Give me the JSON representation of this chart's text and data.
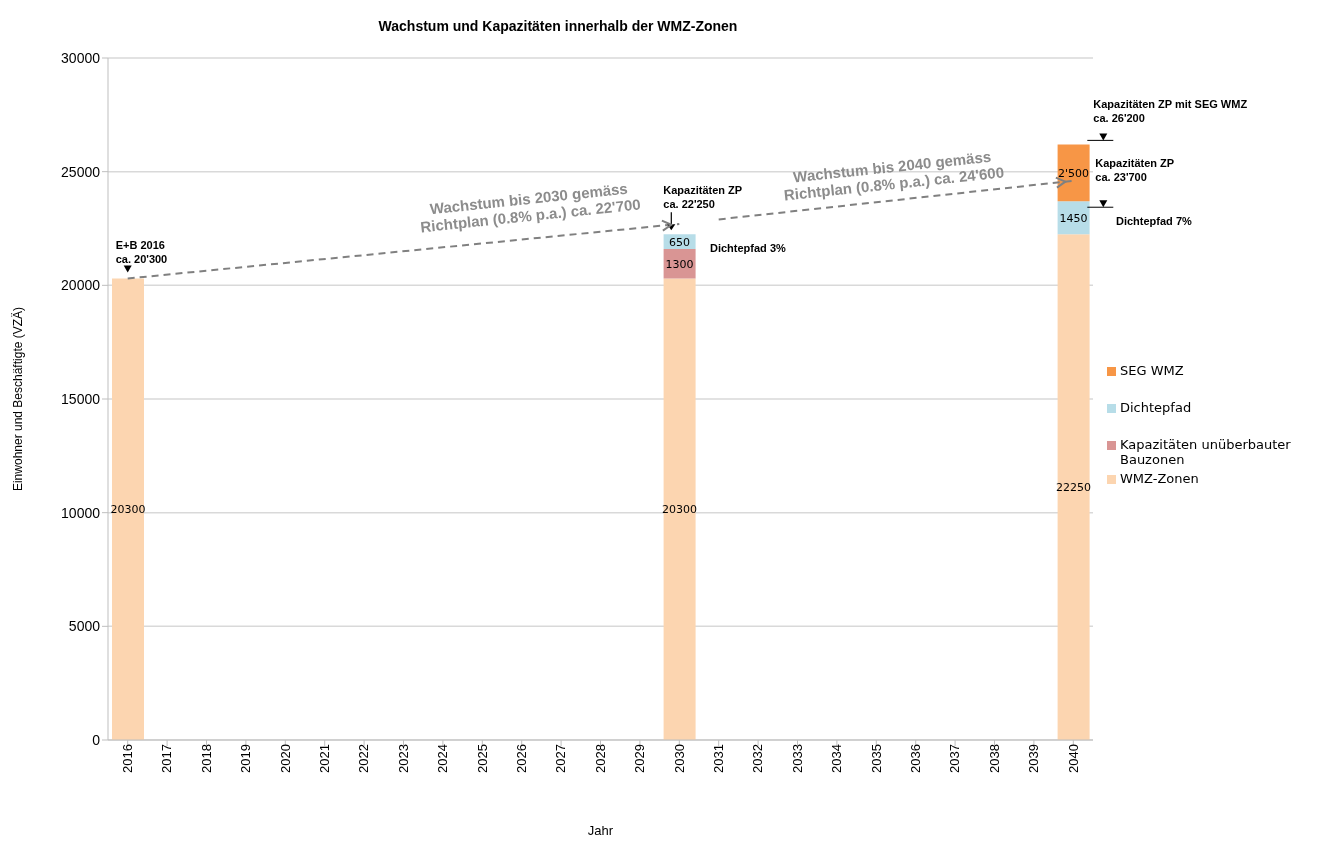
{
  "chart_data": {
    "type": "bar",
    "title": "Wachstum und Kapazitäten innerhalb der WMZ-Zonen",
    "xlabel": "Jahr",
    "ylabel": "Einwohner und Beschäftigte (VZÄ)",
    "categories": [
      "2016",
      "2017",
      "2018",
      "2019",
      "2020",
      "2021",
      "2022",
      "2023",
      "2024",
      "2025",
      "2026",
      "2027",
      "2028",
      "2029",
      "2030",
      "2031",
      "2032",
      "2033",
      "2034",
      "2035",
      "2036",
      "2037",
      "2038",
      "2039",
      "2040"
    ],
    "stacked": true,
    "ylim": [
      0,
      30000
    ],
    "yticks": [
      0,
      5000,
      10000,
      15000,
      20000,
      25000,
      30000
    ],
    "grid": "y",
    "legend": "right",
    "series": [
      {
        "name": "WMZ-Zonen",
        "color": "#fcd5b0",
        "values": [
          20300,
          null,
          null,
          null,
          null,
          null,
          null,
          null,
          null,
          null,
          null,
          null,
          null,
          null,
          20300,
          null,
          null,
          null,
          null,
          null,
          null,
          null,
          null,
          null,
          22250
        ],
        "value_labels": [
          "20300",
          null,
          null,
          null,
          null,
          null,
          null,
          null,
          null,
          null,
          null,
          null,
          null,
          null,
          "20300",
          null,
          null,
          null,
          null,
          null,
          null,
          null,
          null,
          null,
          "22250"
        ]
      },
      {
        "name": "Kapazitäten unüberbauter Bauzonen",
        "color": "#d99594",
        "values": [
          null,
          null,
          null,
          null,
          null,
          null,
          null,
          null,
          null,
          null,
          null,
          null,
          null,
          null,
          1300,
          null,
          null,
          null,
          null,
          null,
          null,
          null,
          null,
          null,
          null
        ],
        "value_labels": [
          null,
          null,
          null,
          null,
          null,
          null,
          null,
          null,
          null,
          null,
          null,
          null,
          null,
          null,
          "1300",
          null,
          null,
          null,
          null,
          null,
          null,
          null,
          null,
          null,
          null
        ]
      },
      {
        "name": "Dichtepfad",
        "color": "#b7dde8",
        "values": [
          null,
          null,
          null,
          null,
          null,
          null,
          null,
          null,
          null,
          null,
          null,
          null,
          null,
          null,
          650,
          null,
          null,
          null,
          null,
          null,
          null,
          null,
          null,
          null,
          1450
        ],
        "value_labels": [
          null,
          null,
          null,
          null,
          null,
          null,
          null,
          null,
          null,
          null,
          null,
          null,
          null,
          null,
          "650",
          null,
          null,
          null,
          null,
          null,
          null,
          null,
          null,
          null,
          "1450"
        ]
      },
      {
        "name": "SEG WMZ",
        "color": "#f79646",
        "values": [
          null,
          null,
          null,
          null,
          null,
          null,
          null,
          null,
          null,
          null,
          null,
          null,
          null,
          null,
          null,
          null,
          null,
          null,
          null,
          null,
          null,
          null,
          null,
          null,
          2500
        ],
        "value_labels": [
          null,
          null,
          null,
          null,
          null,
          null,
          null,
          null,
          null,
          null,
          null,
          null,
          null,
          null,
          null,
          null,
          null,
          null,
          null,
          null,
          null,
          null,
          null,
          null,
          "2'500"
        ]
      },
      {
        "type": "line",
        "color": "#808080",
        "line_style": "dashed",
        "marker": "none",
        "values": [
          20300,
          null,
          null,
          null,
          null,
          null,
          null,
          null,
          null,
          null,
          null,
          null,
          null,
          null,
          22700,
          null,
          null,
          null,
          null,
          null,
          null,
          null,
          null,
          null,
          null
        ]
      },
      {
        "type": "line",
        "color": "#808080",
        "line_style": "dashed",
        "marker": "none",
        "values": [
          null,
          null,
          null,
          null,
          null,
          null,
          null,
          null,
          null,
          null,
          null,
          null,
          null,
          null,
          null,
          22900,
          null,
          null,
          null,
          null,
          null,
          null,
          null,
          null,
          24600
        ]
      }
    ],
    "annotations": [
      {
        "text": "E+B 2016\nca. 20'300",
        "x": "2016",
        "y": 20300
      },
      {
        "text": "Wachstum bis  2030 gemäss\nRichtplan (0.8% p.a.) ca. 22'700",
        "x": "2030",
        "y": 22700
      },
      {
        "text": "Kapazitäten ZP\nca. 22'250",
        "x": "2030",
        "y": 22250
      },
      "Dichtepfad 3%",
      "Wachstum bis 2040 gemäss\nRichtplan (0.8% p.a.) ca. 24'600",
      {
        "text": "Kapazitäten ZP mit SEG WMZ\nca. 26'200",
        "x": "2040",
        "y": 26200
      },
      {
        "text": "Kapazitäten ZP\nca. 23'700",
        "x": "2040",
        "y": 23700
      },
      "Dichtepfad 7%"
    ]
  }
}
